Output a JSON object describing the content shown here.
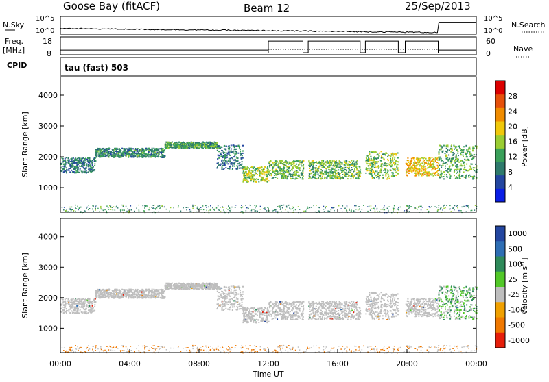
{
  "header": {
    "station": "Goose Bay (fitACF)",
    "beam": "Beam 12",
    "date": "25/Sep/2013"
  },
  "noise_panel": {
    "left_label": "N.Sky",
    "right_label": "N.Search",
    "y_top_tick": "10^5",
    "y_bottom_tick": "10^0"
  },
  "freq_panel": {
    "left_label_line1": "Freq.",
    "left_label_line2": "[MHz]",
    "right_label": "Nave",
    "left_ticks": [
      "18",
      "8"
    ],
    "right_ticks": [
      "60",
      "0"
    ]
  },
  "cpid": {
    "label": "CPID",
    "mode_text": "tau (fast) 503"
  },
  "colors": {
    "power_scale": [
      "#0a1ee6",
      "#2346a0",
      "#2e7a6c",
      "#3aa05a",
      "#9acd32",
      "#f0c80a",
      "#f08c00",
      "#e6500a",
      "#dc0000"
    ],
    "velocity_scale": [
      "#2346a0",
      "#2e6eb4",
      "#2e8a5a",
      "#52c828",
      "#bebebe",
      "#f0a000",
      "#f07800",
      "#e61e0a"
    ]
  },
  "chart_data": [
    {
      "type": "heatmap",
      "name": "Power",
      "ylabel": "Slant Range [km]",
      "ylim": [
        200,
        4600
      ],
      "yticks": [
        "1000",
        "2000",
        "3000",
        "4000"
      ],
      "colorbar_label": "Power [dB]",
      "colorbar_ticks": [
        "4",
        "8",
        "12",
        "16",
        "20",
        "24",
        "28"
      ],
      "colorbar_range": [
        0,
        32
      ]
    },
    {
      "type": "heatmap",
      "name": "Velocity",
      "ylabel": "Slant Range [km]",
      "ylim": [
        200,
        4600
      ],
      "yticks": [
        "1000",
        "2000",
        "3000",
        "4000"
      ],
      "colorbar_label": "Velocity [m s",
      "colorbar_label_sup": "-1",
      "colorbar_label_end": "]",
      "colorbar_ticks": [
        "1000",
        "500",
        "100",
        "25",
        "-25",
        "-100",
        "-500",
        "-1000"
      ]
    }
  ],
  "time_axis": {
    "label": "Time UT",
    "ticks": [
      "00:00",
      "04:00",
      "08:00",
      "12:00",
      "16:00",
      "20:00",
      "00:00"
    ],
    "range_hours": [
      0,
      24
    ]
  },
  "scatter_bands": [
    {
      "h0": 0.0,
      "h1": 2.0,
      "r0": 1500,
      "r1": 2000,
      "power": 9,
      "vel": 25
    },
    {
      "h0": 2.0,
      "h1": 6.0,
      "r0": 2000,
      "r1": 2300,
      "power": 10,
      "vel": 25
    },
    {
      "h0": 6.0,
      "h1": 9.0,
      "r0": 2300,
      "r1": 2500,
      "power": 12,
      "vel": 25
    },
    {
      "h0": 9.0,
      "h1": 10.5,
      "r0": 1600,
      "r1": 2400,
      "power": 9,
      "vel": 25
    },
    {
      "h0": 10.5,
      "h1": 12.0,
      "r0": 1200,
      "r1": 1700,
      "power": 16,
      "vel": 25
    },
    {
      "h0": 12.0,
      "h1": 14.0,
      "r0": 1300,
      "r1": 1900,
      "power": 14,
      "vel": 25
    },
    {
      "h0": 14.3,
      "h1": 17.3,
      "r0": 1300,
      "r1": 1900,
      "power": 14,
      "vel": 25
    },
    {
      "h0": 17.6,
      "h1": 19.5,
      "r0": 1300,
      "r1": 2200,
      "power": 15,
      "vel": 25
    },
    {
      "h0": 19.9,
      "h1": 21.8,
      "r0": 1400,
      "r1": 2000,
      "power": 20,
      "vel": 25
    },
    {
      "h0": 21.8,
      "h1": 24.0,
      "r0": 1300,
      "r1": 2400,
      "power": 13,
      "vel": 100
    }
  ]
}
